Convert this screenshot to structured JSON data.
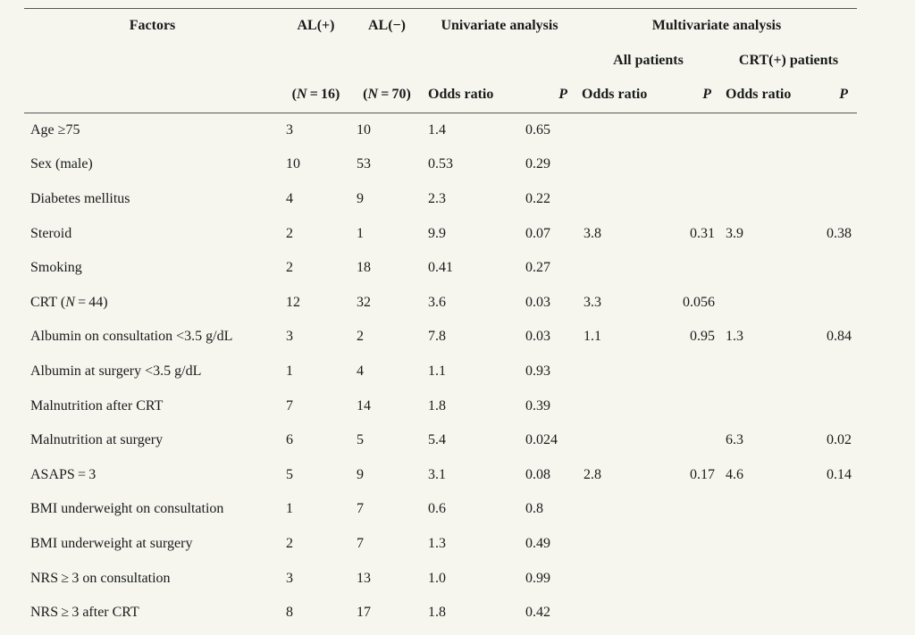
{
  "header": {
    "factors": "Factors",
    "al_pos": "AL(+)",
    "al_neg": "AL(−)",
    "univariate": "Univariate analysis",
    "multivariate": "Multivariate analysis",
    "all_patients": "All patients",
    "crt_patients": "CRT(+) patients",
    "n_pos_open": "(",
    "n_pos_var": "N",
    "n_pos_rest": " = 16)",
    "n_neg_open": "(",
    "n_neg_var": "N",
    "n_neg_rest": " = 70)",
    "odds_ratio": "Odds ratio",
    "p": "P"
  },
  "rows": [
    {
      "factor": "Age ≥75",
      "al_pos": "3",
      "al_neg": "10",
      "uni_or": "1.4",
      "uni_p": "0.65",
      "all_or": "",
      "all_p": "",
      "crt_or": "",
      "crt_p": ""
    },
    {
      "factor": "Sex (male)",
      "al_pos": "10",
      "al_neg": "53",
      "uni_or": "0.53",
      "uni_p": "0.29",
      "all_or": "",
      "all_p": "",
      "crt_or": "",
      "crt_p": ""
    },
    {
      "factor": "Diabetes mellitus",
      "al_pos": "4",
      "al_neg": "9",
      "uni_or": "2.3",
      "uni_p": "0.22",
      "all_or": "",
      "all_p": "",
      "crt_or": "",
      "crt_p": ""
    },
    {
      "factor": "Steroid",
      "al_pos": "2",
      "al_neg": "1",
      "uni_or": "9.9",
      "uni_p": "0.07",
      "all_or": "3.8",
      "all_p": "0.31",
      "crt_or": "3.9",
      "crt_p": "0.38"
    },
    {
      "factor": "Smoking",
      "al_pos": "2",
      "al_neg": "18",
      "uni_or": "0.41",
      "uni_p": "0.27",
      "all_or": "",
      "all_p": "",
      "crt_or": "",
      "crt_p": ""
    },
    {
      "factor_pre": "CRT (",
      "factor_var": "N",
      "factor_post": " = 44)",
      "al_pos": "12",
      "al_neg": "32",
      "uni_or": "3.6",
      "uni_p": "0.03",
      "all_or": "3.3",
      "all_p": "0.056",
      "crt_or": "",
      "crt_p": ""
    },
    {
      "factor": "Albumin on consultation <3.5 g/dL",
      "al_pos": "3",
      "al_neg": "2",
      "uni_or": "7.8",
      "uni_p": "0.03",
      "all_or": "1.1",
      "all_p": "0.95",
      "crt_or": "1.3",
      "crt_p": "0.84"
    },
    {
      "factor": "Albumin at surgery <3.5 g/dL",
      "al_pos": "1",
      "al_neg": "4",
      "uni_or": "1.1",
      "uni_p": "0.93",
      "all_or": "",
      "all_p": "",
      "crt_or": "",
      "crt_p": ""
    },
    {
      "factor": "Malnutrition after CRT",
      "al_pos": "7",
      "al_neg": "14",
      "uni_or": "1.8",
      "uni_p": "0.39",
      "all_or": "",
      "all_p": "",
      "crt_or": "",
      "crt_p": ""
    },
    {
      "factor": "Malnutrition at surgery",
      "al_pos": "6",
      "al_neg": "5",
      "uni_or": "5.4",
      "uni_p": "0.024",
      "all_or": "",
      "all_p": "",
      "crt_or": "6.3",
      "crt_p": "0.02"
    },
    {
      "factor": "ASAPS = 3",
      "al_pos": "5",
      "al_neg": "9",
      "uni_or": "3.1",
      "uni_p": "0.08",
      "all_or": "2.8",
      "all_p": "0.17",
      "crt_or": "4.6",
      "crt_p": "0.14"
    },
    {
      "factor": "BMI underweight on consultation",
      "al_pos": "1",
      "al_neg": "7",
      "uni_or": "0.6",
      "uni_p": "0.8",
      "all_or": "",
      "all_p": "",
      "crt_or": "",
      "crt_p": ""
    },
    {
      "factor": "BMI underweight at surgery",
      "al_pos": "2",
      "al_neg": "7",
      "uni_or": "1.3",
      "uni_p": "0.49",
      "all_or": "",
      "all_p": "",
      "crt_or": "",
      "crt_p": ""
    },
    {
      "factor": "NRS ≥ 3 on consultation",
      "al_pos": "3",
      "al_neg": "13",
      "uni_or": "1.0",
      "uni_p": "0.99",
      "all_or": "",
      "all_p": "",
      "crt_or": "",
      "crt_p": ""
    },
    {
      "factor": "NRS ≥ 3 after CRT",
      "al_pos": "8",
      "al_neg": "17",
      "uni_or": "1.8",
      "uni_p": "0.42",
      "all_or": "",
      "all_p": "",
      "crt_or": "",
      "crt_p": ""
    }
  ]
}
